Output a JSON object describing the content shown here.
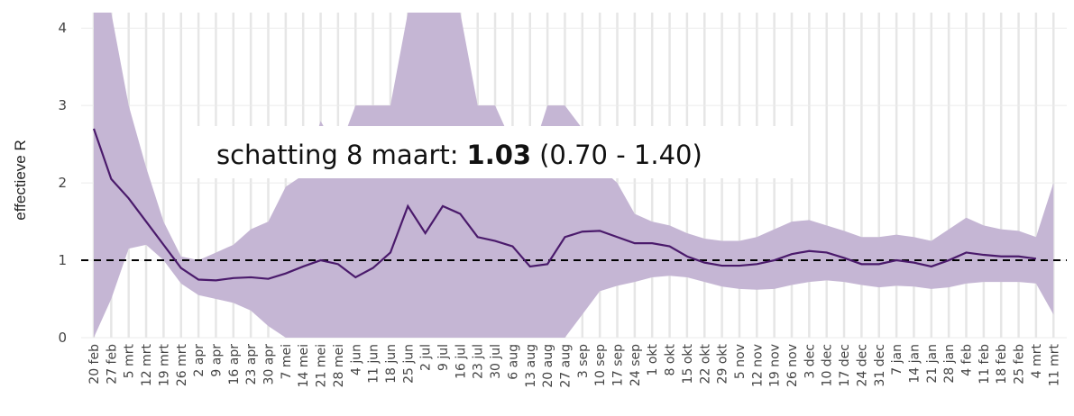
{
  "chart_data": {
    "type": "band-line",
    "y_label": "effectieve R",
    "annotation": {
      "prefix": "schatting 8 maart:",
      "value": "1.03",
      "range": "(0.70 - 1.40)"
    },
    "categories": [
      "20 feb",
      "27 feb",
      "5 mrt",
      "12 mrt",
      "19 mrt",
      "26 mrt",
      "2 apr",
      "9 apr",
      "16 apr",
      "23 apr",
      "30 apr",
      "7 mei",
      "14 mei",
      "21 mei",
      "28 mei",
      "4 jun",
      "11 jun",
      "18 jun",
      "25 jun",
      "2 jul",
      "9 jul",
      "16 jul",
      "23 jul",
      "30 jul",
      "6 aug",
      "13 aug",
      "20 aug",
      "27 aug",
      "3 sep",
      "10 sep",
      "17 sep",
      "24 sep",
      "1 okt",
      "8 okt",
      "15 okt",
      "22 okt",
      "29 okt",
      "5 nov",
      "12 nov",
      "19 nov",
      "26 nov",
      "3 dec",
      "10 dec",
      "17 dec",
      "24 dec",
      "31 dec",
      "7 jan",
      "14 jan",
      "21 jan",
      "28 jan",
      "4 feb",
      "11 feb",
      "18 feb",
      "25 feb",
      "4 mrt",
      "11 mrt"
    ],
    "values": [
      2.7,
      2.05,
      1.8,
      1.5,
      1.2,
      0.9,
      0.75,
      0.74,
      0.77,
      0.78,
      0.76,
      0.83,
      0.92,
      1.0,
      0.95,
      0.78,
      0.9,
      1.1,
      1.7,
      1.35,
      1.7,
      1.6,
      1.3,
      1.25,
      1.18,
      0.92,
      0.95,
      1.3,
      1.37,
      1.38,
      1.3,
      1.22,
      1.22,
      1.18,
      1.05,
      0.97,
      0.93,
      0.93,
      0.95,
      1.0,
      1.08,
      1.12,
      1.1,
      1.03,
      0.95,
      0.95,
      1.0,
      0.97,
      0.92,
      1.0,
      1.1,
      1.07,
      1.05,
      1.05,
      1.02,
      null
    ],
    "upper": [
      4.2,
      4.2,
      3.0,
      2.2,
      1.5,
      1.05,
      1.0,
      1.1,
      1.2,
      1.4,
      1.5,
      1.95,
      2.1,
      2.8,
      2.4,
      3.0,
      3.0,
      3.0,
      4.2,
      4.2,
      4.2,
      4.2,
      3.0,
      3.0,
      2.5,
      2.3,
      3.0,
      3.0,
      2.7,
      2.2,
      2.0,
      1.6,
      1.5,
      1.45,
      1.35,
      1.28,
      1.25,
      1.25,
      1.3,
      1.4,
      1.5,
      1.52,
      1.45,
      1.38,
      1.3,
      1.3,
      1.33,
      1.3,
      1.25,
      1.4,
      1.55,
      1.45,
      1.4,
      1.38,
      1.3,
      2.0
    ],
    "lower": [
      0,
      0.5,
      1.15,
      1.2,
      1.0,
      0.7,
      0.55,
      0.5,
      0.45,
      0.35,
      0.15,
      0,
      0,
      0,
      0,
      0,
      0,
      0,
      0,
      0,
      0,
      0,
      0,
      0,
      0,
      0,
      0,
      0,
      0.3,
      0.6,
      0.67,
      0.72,
      0.78,
      0.8,
      0.78,
      0.72,
      0.66,
      0.63,
      0.62,
      0.63,
      0.68,
      0.72,
      0.74,
      0.72,
      0.68,
      0.65,
      0.67,
      0.66,
      0.63,
      0.65,
      0.7,
      0.72,
      0.72,
      0.72,
      0.7,
      0.3
    ],
    "line_color": "#4a1a6b",
    "band_color": "#c5b6d4",
    "reference_line": 1,
    "ylim": [
      0,
      4.2
    ],
    "yticks": [
      0,
      1,
      2,
      3,
      4
    ],
    "grid": true
  }
}
